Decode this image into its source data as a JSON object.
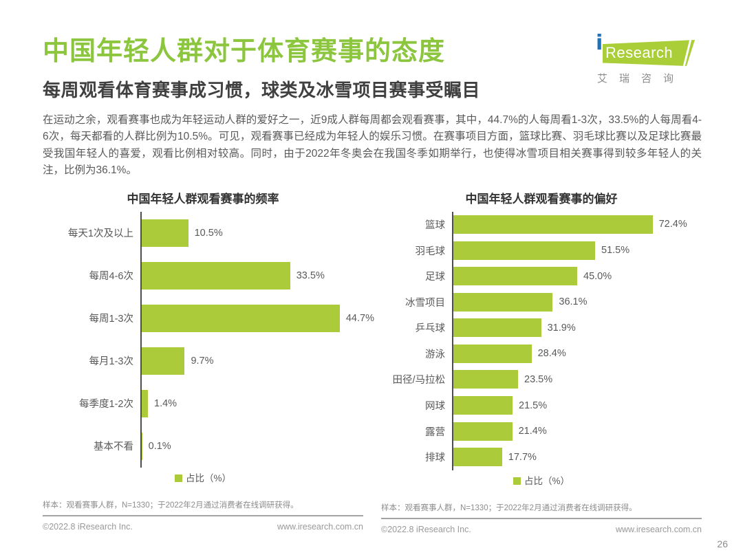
{
  "page": {
    "title": "中国年轻人群对于体育赛事的态度",
    "subtitle": "每周观看体育赛事成习惯，球类及冰雪项目赛事受瞩目",
    "body_text": "在运动之余，观看赛事也成为年轻运动人群的爱好之一，近9成人群每周都会观看赛事，其中，44.7%的人每周看1-3次，33.5%的人每周看4-6次，每天都看的人群比例为10.5%。可见，观看赛事已经成为年轻人的娱乐习惯。在赛事项目方面，篮球比赛、羽毛球比赛以及足球比赛最受我国年轻人的喜爱，观看比例相对较高。同时，由于2022年冬奥会在我国冬季如期举行，也使得冰雪项目相关赛事得到较多年轻人的关注，比例为36.1%。",
    "page_number": "26"
  },
  "logo": {
    "i": "i",
    "brand": "Research",
    "chinese": "艾瑞咨询"
  },
  "colors": {
    "title_green": "#8CC63F",
    "bar_green": "#ABCB3B",
    "logo_green": "#A9CE38",
    "logo_blue": "#2173B9"
  },
  "chart_data": [
    {
      "type": "bar",
      "orientation": "horizontal",
      "title": "中国年轻人群观看赛事的频率",
      "categories": [
        "每天1次及以上",
        "每周4-6次",
        "每周1-3次",
        "每月1-3次",
        "每季度1-2次",
        "基本不看"
      ],
      "values": [
        10.5,
        33.5,
        44.7,
        9.7,
        1.4,
        0.1
      ],
      "labels": [
        "10.5%",
        "33.5%",
        "44.7%",
        "9.7%",
        "1.4%",
        "0.1%"
      ],
      "unit": "%",
      "xlim": [
        0,
        50
      ],
      "grid": false,
      "legend": "占比（%）",
      "legend_position": "bottom",
      "note": "样本：观看赛事人群，N=1330；于2022年2月通过消费者在线调研获得。"
    },
    {
      "type": "bar",
      "orientation": "horizontal",
      "title": "中国年轻人群观看赛事的偏好",
      "categories": [
        "篮球",
        "羽毛球",
        "足球",
        "冰雪项目",
        "乒乓球",
        "游泳",
        "田径/马拉松",
        "网球",
        "露营",
        "排球"
      ],
      "values": [
        72.4,
        51.5,
        45.0,
        36.1,
        31.9,
        28.4,
        23.5,
        21.5,
        21.4,
        17.7
      ],
      "labels": [
        "72.4%",
        "51.5%",
        "45.0%",
        "36.1%",
        "31.9%",
        "28.4%",
        "23.5%",
        "21.5%",
        "21.4%",
        "17.7%"
      ],
      "unit": "%",
      "xlim": [
        0,
        80
      ],
      "grid": false,
      "legend": "占比（%）",
      "legend_position": "bottom",
      "note": "样本：观看赛事人群，N=1330；于2022年2月通过消费者在线调研获得。"
    }
  ],
  "footer": {
    "left_copyright": "©2022.8 iResearch Inc.",
    "left_url": "www.iresearch.com.cn",
    "right_copyright": "©2022.8 iResearch Inc.",
    "right_url": "www.iresearch.com.cn"
  }
}
